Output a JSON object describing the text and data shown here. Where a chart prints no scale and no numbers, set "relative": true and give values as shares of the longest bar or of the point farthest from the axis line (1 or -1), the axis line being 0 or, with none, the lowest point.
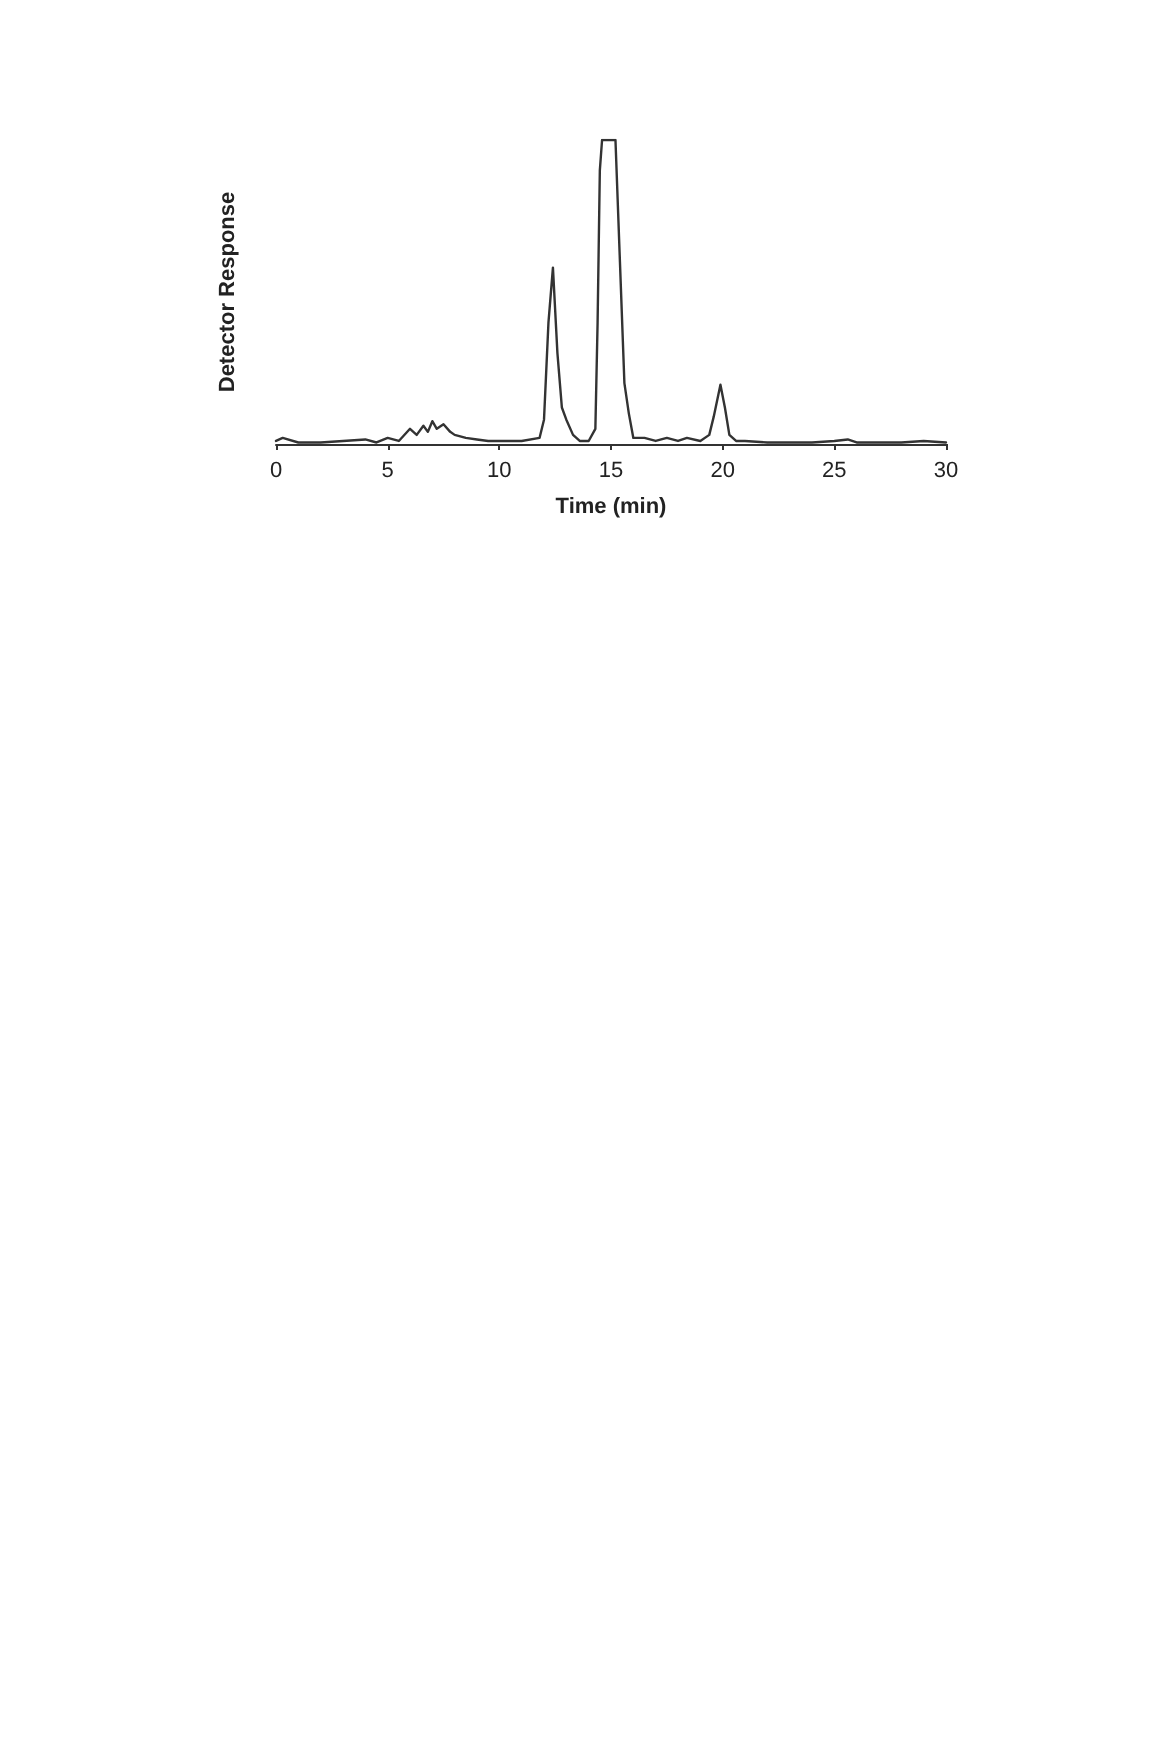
{
  "chart_data": {
    "type": "line",
    "xlabel": "Time (min)",
    "ylabel": "Detector Response",
    "relative": true,
    "grid": false,
    "marker": "none",
    "line_style": "solid",
    "xlim": [
      0,
      30
    ],
    "xticks": [
      0,
      5,
      10,
      15,
      20,
      25,
      30
    ],
    "series": [
      {
        "color": "#333333",
        "x": [
          0,
          0.3,
          1,
          2,
          3,
          4,
          4.5,
          5,
          5.5,
          6,
          6.3,
          6.6,
          6.8,
          7,
          7.2,
          7.5,
          7.8,
          8,
          8.5,
          9,
          9.5,
          10,
          11,
          11.8,
          12,
          12.2,
          12.4,
          12.6,
          12.8,
          13,
          13.3,
          13.6,
          14,
          14.3,
          14.4,
          14.5,
          14.6,
          15.2,
          15.4,
          15.6,
          15.8,
          16,
          16.5,
          17,
          17.5,
          18,
          18.4,
          19,
          19.4,
          19.6,
          19.9,
          20.1,
          20.3,
          20.6,
          21,
          22,
          23,
          24,
          25,
          25.6,
          26,
          27,
          28,
          29,
          30
        ],
        "values": [
          0.01,
          0.02,
          0.005,
          0.005,
          0.01,
          0.015,
          0.005,
          0.02,
          0.01,
          0.05,
          0.03,
          0.06,
          0.04,
          0.075,
          0.05,
          0.065,
          0.04,
          0.03,
          0.02,
          0.015,
          0.01,
          0.01,
          0.01,
          0.02,
          0.08,
          0.4,
          0.58,
          0.3,
          0.12,
          0.08,
          0.03,
          0.01,
          0.01,
          0.05,
          0.4,
          0.9,
          1,
          1,
          0.6,
          0.2,
          0.1,
          0.02,
          0.02,
          0.01,
          0.02,
          0.01,
          0.02,
          0.01,
          0.03,
          0.09,
          0.195,
          0.12,
          0.03,
          0.01,
          0.01,
          0.005,
          0.005,
          0.005,
          0.01,
          0.015,
          0.005,
          0.005,
          0.005,
          0.01,
          0.005
        ]
      }
    ]
  }
}
